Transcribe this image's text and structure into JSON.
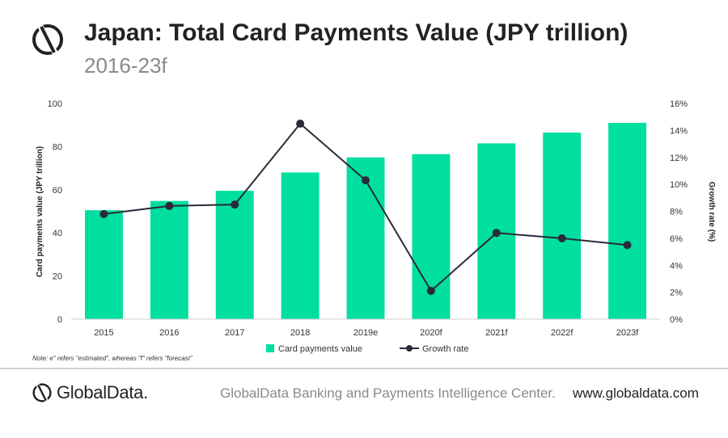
{
  "header": {
    "title": "Japan: Total Card Payments Value (JPY trillion)",
    "subtitle": "2016-23f"
  },
  "footer": {
    "brand": "GlobalData.",
    "center_text": "GlobalData Banking and Payments Intelligence Center.",
    "url": "www.globaldata.com"
  },
  "note": "Note: e\" refers \"estimated\",  whereas \"f\" refers \"forecast\"",
  "colors": {
    "bar": "#00df9f",
    "line": "#2a2a3a",
    "text": "#222222",
    "muted": "#8a8a8a"
  },
  "icons": {
    "logo": "globaldata-logo-icon"
  },
  "chart_data": {
    "type": "bar+line",
    "categories": [
      "2015",
      "2016",
      "2017",
      "2018",
      "2019e",
      "2020f",
      "2021f",
      "2022f",
      "2023f"
    ],
    "series": [
      {
        "name": "Card payments value",
        "type": "bar",
        "axis": "left",
        "values": [
          50.5,
          54.8,
          59.5,
          68.0,
          75.0,
          76.5,
          81.5,
          86.5,
          91.0
        ]
      },
      {
        "name": "Growth rate",
        "type": "line",
        "axis": "right",
        "values": [
          7.8,
          8.4,
          8.5,
          14.5,
          10.3,
          2.1,
          6.4,
          6.0,
          5.5
        ]
      }
    ],
    "ylabel": "Card payments value (JPY trillion)",
    "y2label": "Growth rate (%)",
    "ylim": [
      0,
      100
    ],
    "y_ticks": [
      "0",
      "20",
      "40",
      "60",
      "80",
      "100"
    ],
    "y2lim": [
      0,
      16
    ],
    "y2_ticks": [
      "0%",
      "2%",
      "4%",
      "6%",
      "8%",
      "10%",
      "12%",
      "14%",
      "16%"
    ],
    "grid": false,
    "legend_position": "bottom"
  }
}
